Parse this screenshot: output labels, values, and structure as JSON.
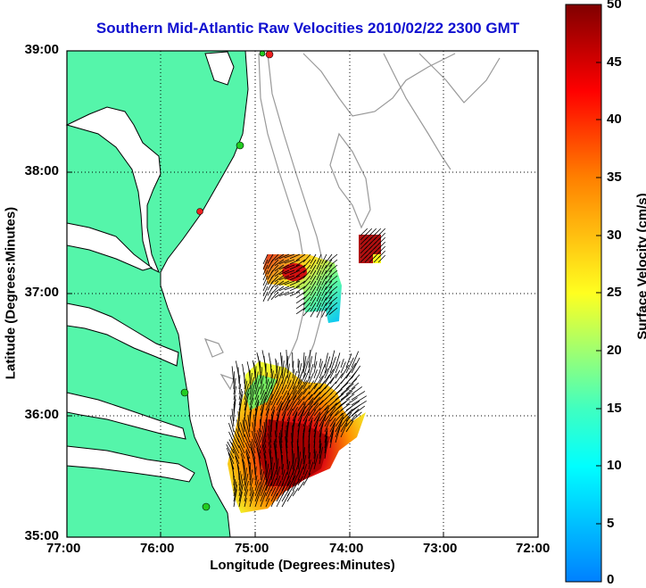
{
  "map": {
    "title": "Southern Mid-Atlantic Raw Velocities 2010/02/22 2300 GMT",
    "x_label": "Longitude (Degrees:Minutes)",
    "y_label": "Latitude (Degrees:Minutes)",
    "x_ticks": [
      "77:00",
      "76:00",
      "75:00",
      "74:00",
      "73:00",
      "72:00"
    ],
    "y_ticks": [
      "39:00",
      "38:00",
      "37:00",
      "36:00",
      "35:00"
    ],
    "x_range": [
      -77,
      -72
    ],
    "y_range": [
      35,
      39
    ],
    "grid": true,
    "land_color": "#55f5aa",
    "water_color": "#ffffff",
    "bathymetry_color": "#999999"
  },
  "colorbar": {
    "label": "Surface Velocity (cm/s)",
    "ticks": [
      "0",
      "5",
      "10",
      "15",
      "20",
      "25",
      "30",
      "35",
      "40",
      "45",
      "50"
    ],
    "range": [
      0,
      50
    ],
    "colormap": "jet"
  },
  "chart_data": {
    "type": "heatmap",
    "title": "Southern Mid-Atlantic Raw Velocities 2010/02/22 2300 GMT",
    "xlabel": "Longitude (Degrees:Minutes)",
    "ylabel": "Latitude (Degrees:Minutes)",
    "xlim": [
      -77,
      -72
    ],
    "ylim": [
      35,
      39
    ],
    "color_range": [
      0,
      50
    ],
    "regions": [
      {
        "name": "",
        "lon_range": [
          -75.0,
          -74.4
        ],
        "lat_range": [
          36.8,
          37.3
        ],
        "speed_range": [
          5,
          45
        ]
      },
      {
        "name": "",
        "lon_range": [
          -73.9,
          -73.7
        ],
        "lat_range": [
          37.2,
          37.5
        ],
        "speed_range": [
          30,
          48
        ]
      },
      {
        "name": "",
        "lon_range": [
          -75.3,
          -74.0
        ],
        "lat_range": [
          35.3,
          36.4
        ],
        "speed_range": [
          10,
          50
        ]
      }
    ],
    "stations": [
      {
        "lon": -74.85,
        "lat": 38.95,
        "color": "#ee2020"
      },
      {
        "lon": -74.92,
        "lat": 38.97,
        "color": "#22cc22"
      },
      {
        "lon": -75.08,
        "lat": 38.2,
        "color": "#22cc22"
      },
      {
        "lon": -75.55,
        "lat": 37.75,
        "color": "#ee2020"
      },
      {
        "lon": -75.7,
        "lat": 36.2,
        "color": "#22cc22"
      },
      {
        "lon": -75.5,
        "lat": 35.25,
        "color": "#22cc22"
      }
    ]
  }
}
